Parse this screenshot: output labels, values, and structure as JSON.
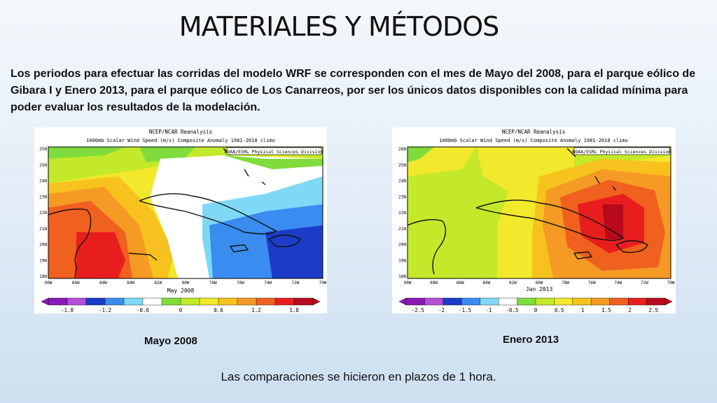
{
  "slide": {
    "title": "MATERIALES Y MÉTODOS",
    "intro": "Los periodos para efectuar las corridas del modelo WRF se corresponden con el mes de Mayo del 2008, para el parque eólico de Gibara I y Enero 2013, para el parque eólico de Los Canarreos, por ser los únicos datos disponibles con la calidad mínima para poder evaluar los resultados de la modelación.",
    "footer": "Las comparaciones se hicieron en plazos de 1 hora."
  },
  "maps": [
    {
      "header_line1": "NCEP/NCAR Reanalysis",
      "header_line2": "1000mb Scalar Wind Speed (m/s) Composite Anomaly 1981-2010 climo",
      "credit": "NOAA/ESRL Physical Sciences Division",
      "period_label": "May 2008",
      "caption": "Mayo 2008",
      "lat_labels": [
        "25N",
        "25N",
        "24N",
        "23N",
        "22N",
        "21N",
        "20N",
        "19N",
        "18N"
      ],
      "lon_labels": [
        "90W",
        "86W",
        "84W",
        "84W",
        "82W",
        "80W",
        "78W",
        "76W",
        "74W",
        "72W",
        "70W"
      ],
      "colorbar_labels": [
        "-1.8",
        "-1.2",
        "-0.6",
        "0",
        "0.6",
        "1.2",
        "1.8"
      ],
      "colors": [
        "#8a1ab8",
        "#b34fd6",
        "#1c3cc8",
        "#3a8cf0",
        "#7fd8f5",
        "#ffffff",
        "#7fdc3c",
        "#c4e82a",
        "#f2e82c",
        "#f7c21e",
        "#f59a24",
        "#f0601e",
        "#e81e1e",
        "#b80a1c"
      ]
    },
    {
      "header_line1": "NCEP/NCAR Reanalysis",
      "header_line2": "1000mb Scalar Wind Speed (m/s) Composite Anomaly 1981-2010 climo",
      "credit": "NOAA/ESRL Physical Sciences Division",
      "period_label": "Jan 2013",
      "caption": "Enero 2013",
      "lat_labels": [
        "26N",
        "25N",
        "24N",
        "23N",
        "22N",
        "21N",
        "20N",
        "19N",
        "18N"
      ],
      "lon_labels": [
        "90W",
        "88W",
        "86W",
        "84W",
        "82W",
        "80W",
        "78W",
        "76W",
        "74W",
        "72W",
        "70W"
      ],
      "colorbar_labels": [
        "-2.5",
        "-2",
        "-1.5",
        "-1",
        "-0.5",
        "0",
        "0.5",
        "1",
        "1.5",
        "2",
        "2.5"
      ],
      "colors": [
        "#8a1ab8",
        "#b34fd6",
        "#1c3cc8",
        "#3a8cf0",
        "#7fd8f5",
        "#ffffff",
        "#7fdc3c",
        "#c4e82a",
        "#f2e82c",
        "#f7c21e",
        "#f59a24",
        "#f0601e",
        "#e81e1e",
        "#b80a1c"
      ]
    }
  ]
}
